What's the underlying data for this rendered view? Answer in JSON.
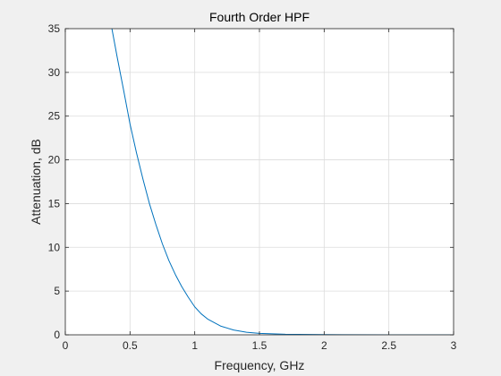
{
  "chart_data": {
    "type": "line",
    "title": "Fourth Order HPF",
    "xlabel": "Frequency, GHz",
    "ylabel": "Attenuation, dB",
    "xlim": [
      0,
      3
    ],
    "ylim": [
      0,
      35
    ],
    "xticks": [
      0,
      0.5,
      1,
      1.5,
      2,
      2.5,
      3
    ],
    "xtick_labels": [
      "0",
      "0.5",
      "1",
      "1.5",
      "2",
      "2.5",
      "3"
    ],
    "yticks": [
      0,
      5,
      10,
      15,
      20,
      25,
      30,
      35
    ],
    "ytick_labels": [
      "0",
      "5",
      "10",
      "15",
      "20",
      "25",
      "30",
      "35"
    ],
    "grid": true,
    "series": [
      {
        "color": "#0072bd",
        "x": [
          0.36,
          0.4,
          0.45,
          0.5,
          0.55,
          0.6,
          0.65,
          0.7,
          0.75,
          0.8,
          0.85,
          0.9,
          0.95,
          1.0,
          1.05,
          1.1,
          1.2,
          1.3,
          1.4,
          1.5,
          1.7,
          2.0,
          2.5,
          3.0
        ],
        "y": [
          35,
          31.8,
          28.0,
          24.1,
          20.8,
          17.8,
          15.0,
          12.6,
          10.4,
          8.5,
          6.9,
          5.5,
          4.3,
          3.2,
          2.4,
          1.8,
          1.0,
          0.55,
          0.3,
          0.17,
          0.06,
          0.02,
          0.0,
          0.0
        ]
      }
    ]
  }
}
